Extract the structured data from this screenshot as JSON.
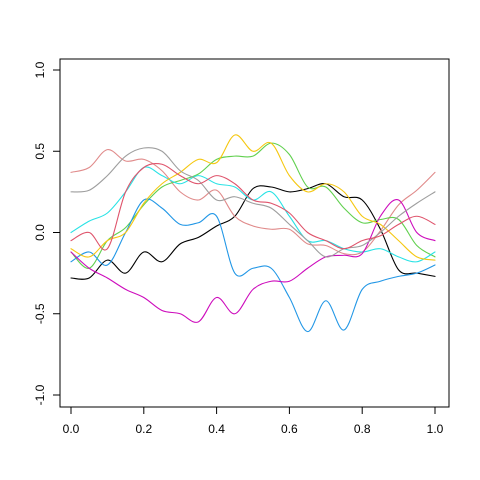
{
  "chart_data": {
    "type": "line",
    "title": "",
    "xlabel": "",
    "ylabel": "",
    "xlim": [
      0,
      1
    ],
    "ylim": [
      -1,
      1
    ],
    "grid": false,
    "legend": "none",
    "x_ticks": [
      {
        "value": 0.0,
        "label": "0.0"
      },
      {
        "value": 0.2,
        "label": "0.2"
      },
      {
        "value": 0.4,
        "label": "0.4"
      },
      {
        "value": 0.6,
        "label": "0.6"
      },
      {
        "value": 0.8,
        "label": "0.8"
      },
      {
        "value": 1.0,
        "label": "1.0"
      }
    ],
    "y_ticks": [
      {
        "value": -1.0,
        "label": "-1.0"
      },
      {
        "value": -0.5,
        "label": "-0.5"
      },
      {
        "value": 0.0,
        "label": "0.0"
      },
      {
        "value": 0.5,
        "label": "0.5"
      },
      {
        "value": 1.0,
        "label": "1.0"
      }
    ],
    "series": [
      {
        "color": "#000000",
        "x": [
          0,
          0.05,
          0.1,
          0.15,
          0.2,
          0.25,
          0.3,
          0.35,
          0.4,
          0.45,
          0.5,
          0.55,
          0.6,
          0.65,
          0.7,
          0.75,
          0.8,
          0.85,
          0.9,
          0.95,
          1.0
        ],
        "y": [
          -0.28,
          -0.28,
          -0.17,
          -0.25,
          -0.12,
          -0.18,
          -0.07,
          -0.03,
          0.04,
          0.1,
          0.27,
          0.28,
          0.25,
          0.27,
          0.3,
          0.22,
          0.2,
          0.02,
          -0.23,
          -0.25,
          -0.27
        ]
      },
      {
        "color": "#e08a8a",
        "x": [
          0,
          0.05,
          0.1,
          0.15,
          0.2,
          0.25,
          0.3,
          0.35,
          0.4,
          0.45,
          0.5,
          0.55,
          0.6,
          0.65,
          0.7,
          0.75,
          0.8,
          0.85,
          0.9,
          0.95,
          1.0
        ],
        "y": [
          0.37,
          0.4,
          0.51,
          0.44,
          0.45,
          0.38,
          0.25,
          0.2,
          0.26,
          0.1,
          0.04,
          0.02,
          0.02,
          -0.07,
          -0.08,
          -0.13,
          -0.12,
          0.01,
          0.17,
          0.26,
          0.37
        ]
      },
      {
        "color": "#61d04f",
        "x": [
          0,
          0.05,
          0.1,
          0.15,
          0.2,
          0.25,
          0.3,
          0.35,
          0.4,
          0.45,
          0.5,
          0.55,
          0.6,
          0.65,
          0.7,
          0.75,
          0.8,
          0.85,
          0.9,
          0.95,
          1.0
        ],
        "y": [
          -0.12,
          -0.22,
          -0.05,
          0.03,
          0.17,
          0.28,
          0.32,
          0.36,
          0.45,
          0.47,
          0.47,
          0.55,
          0.48,
          0.28,
          0.28,
          0.15,
          0.06,
          0.08,
          0.08,
          -0.08,
          -0.15
        ]
      },
      {
        "color": "#2297e6",
        "x": [
          0,
          0.05,
          0.1,
          0.15,
          0.2,
          0.25,
          0.3,
          0.35,
          0.4,
          0.45,
          0.5,
          0.55,
          0.6,
          0.65,
          0.7,
          0.75,
          0.8,
          0.85,
          0.9,
          0.95,
          1.0
        ],
        "y": [
          -0.18,
          -0.12,
          -0.2,
          0.0,
          0.2,
          0.15,
          0.05,
          0.06,
          0.1,
          -0.25,
          -0.22,
          -0.22,
          -0.4,
          -0.61,
          -0.42,
          -0.6,
          -0.35,
          -0.3,
          -0.27,
          -0.25,
          -0.2
        ]
      },
      {
        "color": "#28e2e5",
        "x": [
          0,
          0.05,
          0.1,
          0.15,
          0.2,
          0.25,
          0.3,
          0.35,
          0.4,
          0.45,
          0.5,
          0.55,
          0.6,
          0.65,
          0.7,
          0.75,
          0.8,
          0.85,
          0.9,
          0.95,
          1.0
        ],
        "y": [
          0.0,
          0.07,
          0.12,
          0.25,
          0.4,
          0.35,
          0.3,
          0.35,
          0.3,
          0.28,
          0.2,
          0.25,
          0.1,
          -0.05,
          -0.05,
          -0.1,
          -0.12,
          -0.1,
          -0.15,
          -0.18,
          -0.12
        ]
      },
      {
        "color": "#cd0bbc",
        "x": [
          0,
          0.05,
          0.1,
          0.15,
          0.2,
          0.25,
          0.3,
          0.35,
          0.4,
          0.45,
          0.5,
          0.55,
          0.6,
          0.65,
          0.7,
          0.75,
          0.8,
          0.85,
          0.9,
          0.95,
          1.0
        ],
        "y": [
          -0.12,
          -0.22,
          -0.28,
          -0.35,
          -0.4,
          -0.48,
          -0.5,
          -0.55,
          -0.4,
          -0.5,
          -0.35,
          -0.3,
          -0.3,
          -0.22,
          -0.15,
          -0.14,
          -0.13,
          0.1,
          0.2,
          0.0,
          -0.05
        ]
      },
      {
        "color": "#f5c710",
        "x": [
          0,
          0.05,
          0.1,
          0.15,
          0.2,
          0.25,
          0.3,
          0.35,
          0.4,
          0.45,
          0.5,
          0.55,
          0.6,
          0.65,
          0.7,
          0.75,
          0.8,
          0.85,
          0.9,
          0.95,
          1.0
        ],
        "y": [
          -0.1,
          -0.15,
          -0.05,
          0.0,
          0.18,
          0.3,
          0.37,
          0.45,
          0.43,
          0.6,
          0.5,
          0.55,
          0.35,
          0.25,
          0.3,
          0.25,
          0.1,
          0.05,
          -0.05,
          -0.15,
          -0.17
        ]
      },
      {
        "color": "#9e9e9e",
        "x": [
          0,
          0.05,
          0.1,
          0.15,
          0.2,
          0.25,
          0.3,
          0.35,
          0.4,
          0.45,
          0.5,
          0.55,
          0.6,
          0.65,
          0.7,
          0.75,
          0.8,
          0.85,
          0.9,
          0.95,
          1.0
        ],
        "y": [
          0.25,
          0.26,
          0.35,
          0.47,
          0.52,
          0.5,
          0.38,
          0.32,
          0.2,
          0.22,
          0.18,
          0.15,
          0.05,
          -0.05,
          -0.15,
          -0.1,
          -0.08,
          0.0,
          0.1,
          0.18,
          0.25
        ]
      },
      {
        "color": "#df536b",
        "x": [
          0,
          0.05,
          0.1,
          0.15,
          0.2,
          0.25,
          0.3,
          0.35,
          0.4,
          0.45,
          0.5,
          0.55,
          0.6,
          0.65,
          0.7,
          0.75,
          0.8,
          0.85,
          0.9,
          0.95,
          1.0
        ],
        "y": [
          -0.05,
          0.0,
          -0.1,
          0.25,
          0.4,
          0.42,
          0.35,
          0.3,
          0.35,
          0.3,
          0.2,
          0.18,
          0.12,
          0.0,
          -0.05,
          -0.1,
          -0.05,
          -0.02,
          0.05,
          0.1,
          0.05
        ]
      }
    ]
  }
}
